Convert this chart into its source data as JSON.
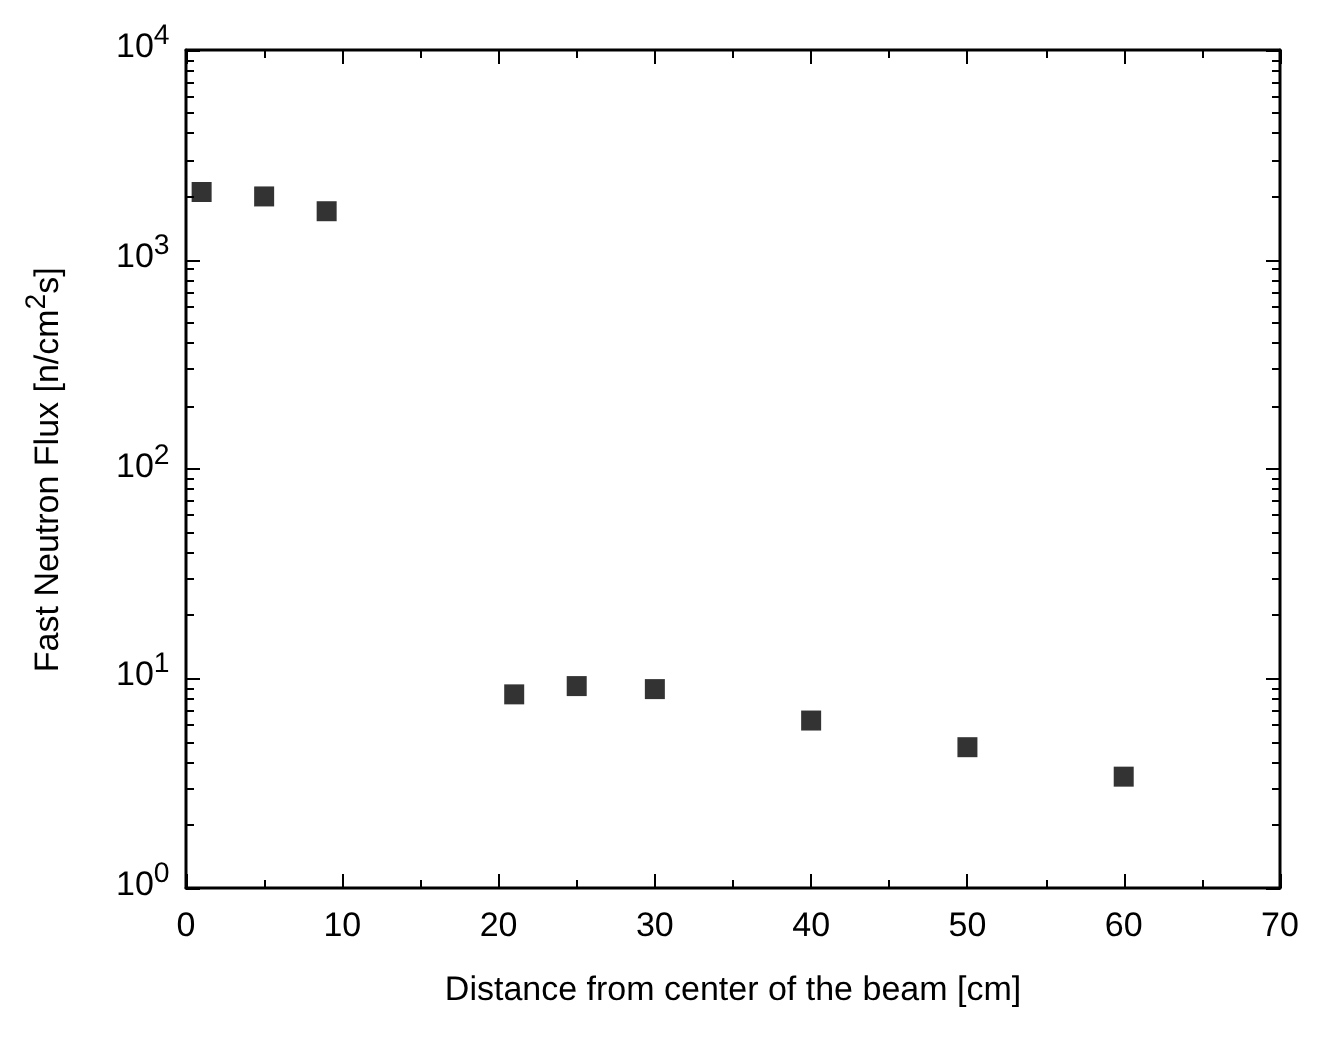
{
  "chart_data": {
    "type": "scatter",
    "xlabel": "Distance from center of the beam [cm]",
    "ylabel": "Fast Neutron Flux [n/cm$^{2}$s]",
    "x": [
      1,
      5,
      9,
      21,
      25,
      30,
      40,
      50,
      60
    ],
    "series": [
      {
        "color": "#000000",
        "values": [
          2100,
          2000,
          1700,
          8.4,
          9.2,
          8.9,
          6.3,
          4.7,
          3.4
        ]
      }
    ],
    "xlim": [
      0,
      70
    ],
    "xticks": [
      0,
      10,
      20,
      30,
      40,
      50,
      60,
      70
    ],
    "ylim": [
      1,
      10000
    ],
    "yticks": [
      {
        "value": 1,
        "label": "10$^{0}$"
      },
      {
        "value": 10,
        "label": "10$^{1}$"
      },
      {
        "value": 100,
        "label": "10$^{2}$"
      },
      {
        "value": 1000,
        "label": "10$^{3}$"
      },
      {
        "value": 10000,
        "label": "10$^{4}$"
      }
    ],
    "log": "y",
    "marker": "square",
    "grid": false
  }
}
